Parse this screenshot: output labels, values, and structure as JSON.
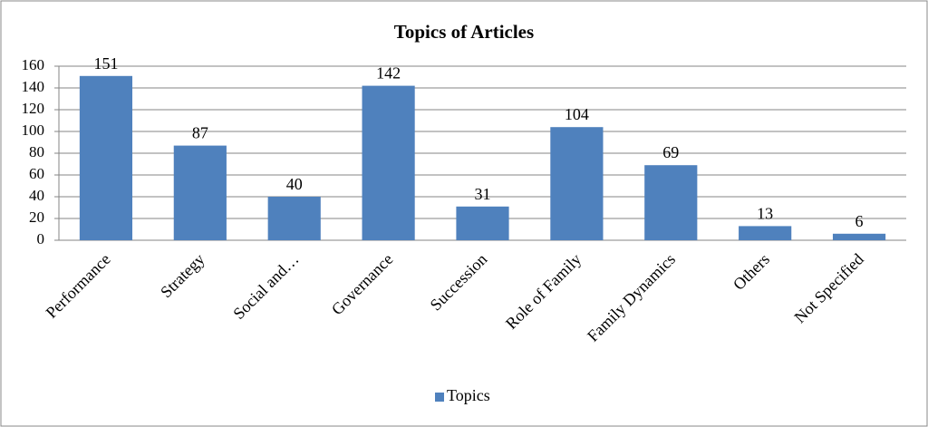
{
  "chart_data": {
    "type": "bar",
    "title": "Topics of Articles",
    "categories": [
      "Performance",
      "Strategy",
      "Social and…",
      "Governance",
      "Succession",
      "Role of Family",
      "Family Dynamics",
      "Others",
      "Not Specified"
    ],
    "series": [
      {
        "name": "Topics",
        "color": "#4f81bd",
        "values": [
          151,
          87,
          40,
          142,
          31,
          104,
          69,
          13,
          6
        ]
      }
    ],
    "ylim": [
      0,
      160
    ],
    "yticks": [
      0,
      20,
      40,
      60,
      80,
      100,
      120,
      140,
      160
    ],
    "grid": true,
    "legend": "bottom"
  }
}
